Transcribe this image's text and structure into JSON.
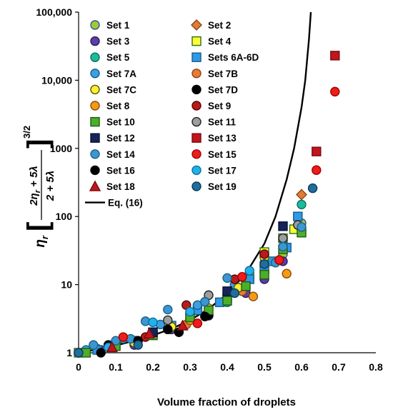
{
  "chart_data": {
    "type": "scatter",
    "title": "",
    "xlabel": "Volume fraction of droplets",
    "ylabel": "η_r [(2η_r + 5λ)/(2 + 5λ)]^(3/2)",
    "ylabel_parts": {
      "eta_r": "η",
      "sub_r": "r",
      "numerator": "2η",
      "num_rest": " + 5λ",
      "denominator": "2 + 5λ",
      "exponent": "3/2"
    },
    "xlim": [
      0,
      0.8
    ],
    "ylim": [
      1,
      100000
    ],
    "yscale": "log",
    "grid": false,
    "legend_position": "top-left",
    "x_ticks": [
      "0",
      "0.1",
      "0.2",
      "0.3",
      "0.4",
      "0.5",
      "0.6",
      "0.7",
      "0.8"
    ],
    "y_ticks": [
      {
        "value": 1,
        "label": "1"
      },
      {
        "value": 10,
        "label": "10"
      },
      {
        "value": 100,
        "label": "100"
      },
      {
        "value": 1000,
        "label": "1000"
      },
      {
        "value": 10000,
        "label": "10,000"
      },
      {
        "value": 100000,
        "label": "100,000"
      }
    ],
    "series": [
      {
        "name": "Set 1",
        "marker": "circle",
        "color": "#9acd32",
        "stroke": "#3a4fa0",
        "points": [
          [
            0.0,
            1.0
          ],
          [
            0.05,
            1.15
          ],
          [
            0.1,
            1.4
          ],
          [
            0.2,
            2.0
          ],
          [
            0.3,
            3.2
          ],
          [
            0.4,
            6.0
          ],
          [
            0.45,
            9.0
          ],
          [
            0.5,
            15.0
          ],
          [
            0.55,
            28.0
          ],
          [
            0.6,
            80.0
          ]
        ]
      },
      {
        "name": "Set 2",
        "marker": "diamond",
        "color": "#e07b39",
        "stroke": "#8b4513",
        "points": [
          [
            0.6,
            210.0
          ]
        ]
      },
      {
        "name": "Set 3",
        "marker": "circle",
        "color": "#5b3fa6",
        "stroke": "#2a1a60",
        "points": [
          [
            0.0,
            1.0
          ],
          [
            0.06,
            1.1
          ],
          [
            0.15,
            1.3
          ],
          [
            0.25,
            2.2
          ],
          [
            0.35,
            3.5
          ],
          [
            0.45,
            7.5
          ],
          [
            0.5,
            12.0
          ],
          [
            0.55,
            22.0
          ],
          [
            0.6,
            60.0
          ]
        ]
      },
      {
        "name": "Set 4",
        "marker": "square",
        "color": "#ffff33",
        "stroke": "#2a6e1a",
        "points": [
          [
            0.0,
            1.0
          ],
          [
            0.1,
            1.3
          ],
          [
            0.2,
            1.9
          ],
          [
            0.3,
            3.5
          ],
          [
            0.4,
            6.5
          ],
          [
            0.46,
            13.0
          ],
          [
            0.5,
            30.0
          ],
          [
            0.55,
            48.0
          ],
          [
            0.58,
            65.0
          ]
        ]
      },
      {
        "name": "Set 5",
        "marker": "circle",
        "color": "#1abc9c",
        "stroke": "#0e6e5a",
        "points": [
          [
            0.0,
            1.0
          ],
          [
            0.1,
            1.4
          ],
          [
            0.2,
            2.0
          ],
          [
            0.3,
            3.0
          ],
          [
            0.4,
            5.5
          ],
          [
            0.5,
            18.0
          ],
          [
            0.55,
            45.0
          ],
          [
            0.6,
            150.0
          ]
        ]
      },
      {
        "name": "Sets 6A-6D",
        "marker": "square",
        "color": "#2f9be3",
        "stroke": "#1a5a8a",
        "points": [
          [
            0.05,
            1.1
          ],
          [
            0.15,
            1.5
          ],
          [
            0.25,
            2.5
          ],
          [
            0.32,
            4.2
          ],
          [
            0.38,
            5.5
          ],
          [
            0.42,
            9.0
          ],
          [
            0.46,
            12.0
          ],
          [
            0.5,
            17.0
          ],
          [
            0.52,
            22.0
          ],
          [
            0.56,
            35.0
          ],
          [
            0.59,
            100.0
          ]
        ]
      },
      {
        "name": "Set 7A",
        "marker": "circle",
        "color": "#3aa0e0",
        "stroke": "#1a5a8a",
        "points": [
          [
            0.02,
            1.1
          ],
          [
            0.12,
            1.6
          ],
          [
            0.22,
            2.6
          ],
          [
            0.32,
            5.0
          ],
          [
            0.42,
            10.0
          ],
          [
            0.5,
            21.0
          ]
        ]
      },
      {
        "name": "Set 7B",
        "marker": "circle",
        "color": "#e87b3a",
        "stroke": "#8b4513",
        "points": [
          [
            0.29,
            2.6
          ],
          [
            0.44,
            8.0
          ]
        ]
      },
      {
        "name": "Set 7C",
        "marker": "circle",
        "color": "#ffee33",
        "stroke": "#555500",
        "points": [
          [
            0.15,
            1.4
          ],
          [
            0.25,
            2.4
          ],
          [
            0.35,
            4.5
          ],
          [
            0.43,
            9.0
          ],
          [
            0.5,
            25.0
          ]
        ]
      },
      {
        "name": "Set 7D",
        "marker": "circle",
        "color": "#000000",
        "stroke": "#000000",
        "points": [
          [
            0.08,
            1.3
          ],
          [
            0.24,
            2.2
          ],
          [
            0.35,
            3.6
          ],
          [
            0.4,
            7.0
          ]
        ]
      },
      {
        "name": "Set 8",
        "marker": "circle",
        "color": "#f39c12",
        "stroke": "#8b4513",
        "points": [
          [
            0.3,
            3.0
          ],
          [
            0.47,
            6.7
          ],
          [
            0.56,
            14.5
          ]
        ]
      },
      {
        "name": "Set 9",
        "marker": "circle",
        "color": "#b71c1c",
        "stroke": "#5a0000",
        "points": [
          [
            0.18,
            1.7
          ],
          [
            0.29,
            5.0
          ],
          [
            0.42,
            12.0
          ],
          [
            0.5,
            28.0
          ]
        ]
      },
      {
        "name": "Set 10",
        "marker": "square",
        "color": "#4caf2a",
        "stroke": "#1e5a10",
        "points": [
          [
            0.02,
            1.0
          ],
          [
            0.1,
            1.25
          ],
          [
            0.2,
            1.8
          ],
          [
            0.3,
            3.3
          ],
          [
            0.35,
            4.2
          ],
          [
            0.4,
            5.8
          ],
          [
            0.45,
            9.5
          ],
          [
            0.5,
            14.0
          ],
          [
            0.55,
            33.0
          ],
          [
            0.6,
            58.0
          ]
        ]
      },
      {
        "name": "Set 11",
        "marker": "circle",
        "color": "#9e9e9e",
        "stroke": "#222222",
        "points": [
          [
            0.24,
            3.0
          ],
          [
            0.35,
            7.0
          ],
          [
            0.55,
            48.0
          ],
          [
            0.59,
            75.0
          ]
        ]
      },
      {
        "name": "Set 12",
        "marker": "square",
        "color": "#14235a",
        "stroke": "#0a1030",
        "points": [
          [
            0.2,
            2.0
          ],
          [
            0.4,
            8.0
          ],
          [
            0.55,
            72.0
          ]
        ]
      },
      {
        "name": "Set 13",
        "marker": "square",
        "color": "#c0161c",
        "stroke": "#7a0a0e",
        "points": [
          [
            0.64,
            900.0
          ],
          [
            0.69,
            23000.0
          ]
        ]
      },
      {
        "name": "Set 14",
        "marker": "circle",
        "color": "#3a97cf",
        "stroke": "#1f5f86",
        "points": [
          [
            0.04,
            1.3
          ],
          [
            0.1,
            1.5
          ],
          [
            0.14,
            1.6
          ],
          [
            0.18,
            2.9
          ],
          [
            0.24,
            4.3
          ],
          [
            0.34,
            5.6
          ],
          [
            0.4,
            12.5
          ],
          [
            0.53,
            21.0
          ],
          [
            0.55,
            36.0
          ],
          [
            0.6,
            70.0
          ]
        ]
      },
      {
        "name": "Set 15",
        "marker": "circle",
        "color": "#ee1c1c",
        "stroke": "#a00000",
        "points": [
          [
            0.12,
            1.7
          ],
          [
            0.32,
            2.7
          ],
          [
            0.44,
            13.0
          ],
          [
            0.54,
            23.0
          ],
          [
            0.64,
            480.0
          ],
          [
            0.69,
            6800.0
          ]
        ]
      },
      {
        "name": "Set 16",
        "marker": "circle",
        "color": "#000000",
        "stroke": "#000000",
        "points": [
          [
            0.06,
            1.0
          ],
          [
            0.16,
            1.5
          ],
          [
            0.27,
            2.0
          ],
          [
            0.34,
            3.4
          ]
        ]
      },
      {
        "name": "Set 17",
        "marker": "circle",
        "color": "#20b2ee",
        "stroke": "#0e6e96",
        "points": [
          [
            0.08,
            1.2
          ],
          [
            0.2,
            2.8
          ],
          [
            0.3,
            4.0
          ],
          [
            0.46,
            16.0
          ],
          [
            0.5,
            20.0
          ]
        ]
      },
      {
        "name": "Set 18",
        "marker": "triangle",
        "color": "#c0161c",
        "stroke": "#7a0a0e",
        "points": [
          [
            0.09,
            1.2
          ],
          [
            0.19,
            1.9
          ],
          [
            0.28,
            2.5
          ]
        ]
      },
      {
        "name": "Set 19",
        "marker": "circle",
        "color": "#1f6f9e",
        "stroke": "#0e3a56",
        "points": [
          [
            0.0,
            1.0
          ],
          [
            0.16,
            1.3
          ],
          [
            0.42,
            7.5
          ],
          [
            0.5,
            20.0
          ],
          [
            0.63,
            260.0
          ]
        ]
      },
      {
        "name": "Eq. (16)",
        "marker": "line",
        "color": "#000000",
        "stroke": "#000000",
        "points": [
          [
            0.0,
            1.0
          ],
          [
            0.05,
            1.12
          ],
          [
            0.1,
            1.28
          ],
          [
            0.15,
            1.5
          ],
          [
            0.2,
            1.8
          ],
          [
            0.25,
            2.25
          ],
          [
            0.3,
            3.0
          ],
          [
            0.35,
            4.4
          ],
          [
            0.4,
            7.3
          ],
          [
            0.45,
            14.5
          ],
          [
            0.5,
            40.0
          ],
          [
            0.53,
            100.0
          ],
          [
            0.56,
            350.0
          ],
          [
            0.58,
            1000.0
          ],
          [
            0.6,
            4000.0
          ],
          [
            0.61,
            10000.0
          ],
          [
            0.62,
            40000.0
          ],
          [
            0.625,
            100000.0
          ]
        ]
      }
    ]
  }
}
